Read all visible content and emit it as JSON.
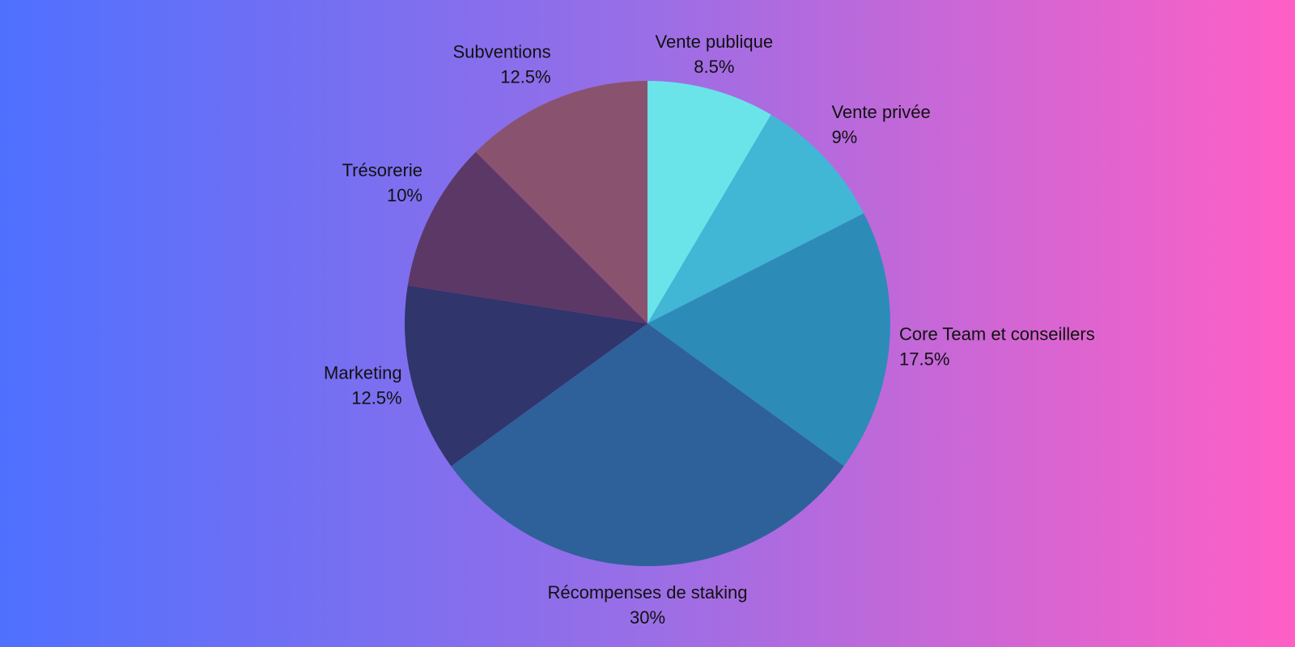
{
  "chart_data": {
    "type": "pie",
    "categories": [
      "Vente publique",
      "Vente privée",
      "Core Team et conseillers",
      "Récompenses de staking",
      "Marketing",
      "Trésorerie",
      "Subventions"
    ],
    "values": [
      8.5,
      9,
      17.5,
      30,
      12.5,
      10,
      12.5
    ],
    "value_labels": [
      "8.5%",
      "9%",
      "17.5%",
      "30%",
      "12.5%",
      "10%",
      "12.5%"
    ],
    "colors": [
      "#6ae4e8",
      "#42b6d5",
      "#2d8bb8",
      "#2e6199",
      "#30356b",
      "#5c3866",
      "#89536f"
    ]
  }
}
